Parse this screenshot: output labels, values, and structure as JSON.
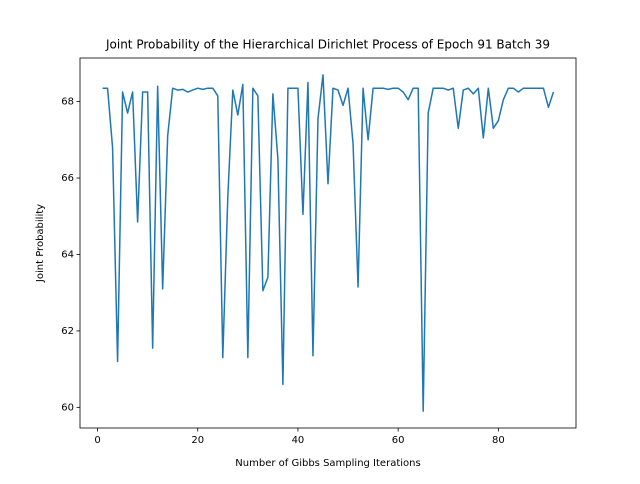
{
  "chart_data": {
    "type": "line",
    "title": "Joint Probability of the Hierarchical Dirichlet Process of Epoch 91 Batch 39",
    "xlabel": "Number of Gibbs Sampling Iterations",
    "ylabel": "Joint Probability",
    "x": [
      1,
      2,
      3,
      4,
      5,
      6,
      7,
      8,
      9,
      10,
      11,
      12,
      13,
      14,
      15,
      16,
      17,
      18,
      19,
      20,
      21,
      22,
      23,
      24,
      25,
      26,
      27,
      28,
      29,
      30,
      31,
      32,
      33,
      34,
      35,
      36,
      37,
      38,
      39,
      40,
      41,
      42,
      43,
      44,
      45,
      46,
      47,
      48,
      49,
      50,
      51,
      52,
      53,
      54,
      55,
      56,
      57,
      58,
      59,
      60,
      61,
      62,
      63,
      64,
      65,
      66,
      67,
      68,
      69,
      70,
      71,
      72,
      73,
      74,
      75,
      76,
      77,
      78,
      79,
      80,
      81,
      82,
      83,
      84,
      85,
      86,
      87,
      88,
      89,
      90,
      91
    ],
    "series": [
      {
        "name": "joint probability",
        "color": "#1f77b4",
        "values": [
          68.35,
          68.35,
          66.8,
          61.2,
          68.25,
          67.7,
          68.25,
          64.85,
          68.25,
          68.25,
          61.55,
          68.4,
          63.1,
          67.1,
          68.35,
          68.3,
          68.32,
          68.25,
          68.3,
          68.35,
          68.32,
          68.35,
          68.35,
          68.15,
          61.3,
          65.5,
          68.3,
          67.65,
          68.45,
          61.3,
          68.35,
          68.15,
          63.05,
          63.4,
          68.2,
          66.5,
          60.6,
          68.35,
          68.35,
          68.35,
          65.05,
          68.5,
          61.35,
          67.55,
          68.7,
          65.85,
          68.35,
          68.3,
          67.9,
          68.35,
          66.9,
          63.15,
          68.35,
          67.0,
          68.35,
          68.35,
          68.35,
          68.32,
          68.35,
          68.35,
          68.25,
          68.05,
          68.35,
          68.35,
          59.9,
          67.7,
          68.35,
          68.35,
          68.35,
          68.3,
          68.35,
          67.3,
          68.3,
          68.35,
          68.2,
          68.35,
          67.05,
          68.35,
          67.3,
          67.5,
          68.05,
          68.35,
          68.35,
          68.25,
          68.35,
          68.35,
          68.35,
          68.35,
          68.35,
          67.85,
          68.25
        ]
      }
    ],
    "xlim": [
      -3.5,
      95.5
    ],
    "xticks": [
      0,
      20,
      40,
      60,
      80
    ],
    "ylim": [
      59.46,
      69.14
    ],
    "yticks": [
      60,
      62,
      64,
      66,
      68
    ]
  }
}
